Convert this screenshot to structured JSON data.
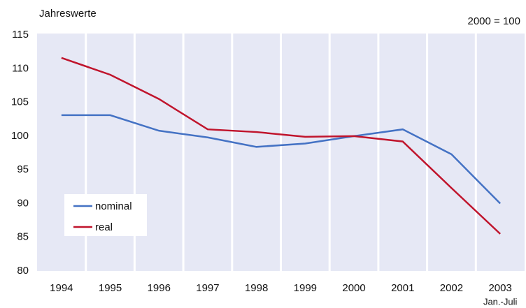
{
  "chart_data": {
    "type": "line",
    "title": "Jahreswerte",
    "note": "2000 = 100",
    "categories": [
      "1994",
      "1995",
      "1996",
      "1997",
      "1998",
      "1999",
      "2000",
      "2001",
      "2002",
      "2003"
    ],
    "x_note": "Jan.-Juli",
    "series": [
      {
        "name": "nominal",
        "color": "#4472c4",
        "values": [
          103.1,
          103.1,
          100.8,
          99.8,
          98.4,
          98.9,
          100,
          101,
          97.3,
          90.0
        ]
      },
      {
        "name": "real",
        "color": "#c0142c",
        "values": [
          111.6,
          109.1,
          105.5,
          101.0,
          100.6,
          99.9,
          100,
          99.2,
          92.3,
          85.5
        ]
      }
    ],
    "ylim": [
      80,
      115
    ],
    "yticks": [
      80,
      85,
      90,
      95,
      100,
      105,
      110,
      115
    ],
    "legend": "lower left"
  }
}
